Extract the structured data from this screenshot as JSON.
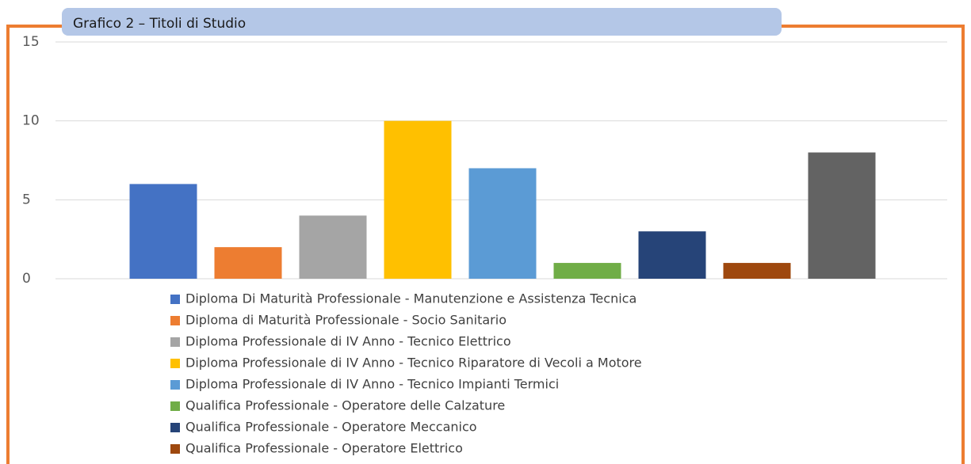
{
  "chart_data": {
    "type": "bar",
    "title": "Grafico 2 – Titoli di Studio",
    "ylim": [
      0,
      15
    ],
    "yticks": [
      0,
      5,
      10,
      15
    ],
    "grid": true,
    "series": [
      {
        "name": "Diploma Di Maturità Professionale - Manutenzione e Assistenza Tecnica",
        "color": "#4472c4",
        "values": [
          6
        ]
      },
      {
        "name": "Diploma di Maturità Professionale - Socio Sanitario",
        "color": "#ed7d31",
        "values": [
          2
        ]
      },
      {
        "name": "Diploma Professionale di IV Anno - Tecnico Elettrico",
        "color": "#a5a5a5",
        "values": [
          4
        ]
      },
      {
        "name": "Diploma Professionale di IV Anno - Tecnico Riparatore di Vecoli a Motore",
        "color": "#ffc000",
        "values": [
          10
        ]
      },
      {
        "name": "Diploma Professionale di IV Anno - Tecnico Impianti Termici",
        "color": "#5b9bd5",
        "values": [
          7
        ]
      },
      {
        "name": "Qualifica Professionale - Operatore delle Calzature",
        "color": "#70ad47",
        "values": [
          1
        ]
      },
      {
        "name": "Qualifica Professionale - Operatore Meccanico",
        "color": "#264478",
        "values": [
          3
        ]
      },
      {
        "name": "Qualifica Professionale - Operatore Elettrico",
        "color": "#9e480e",
        "values": [
          1
        ]
      },
      {
        "color": "#636363",
        "values": [
          8
        ]
      }
    ]
  }
}
